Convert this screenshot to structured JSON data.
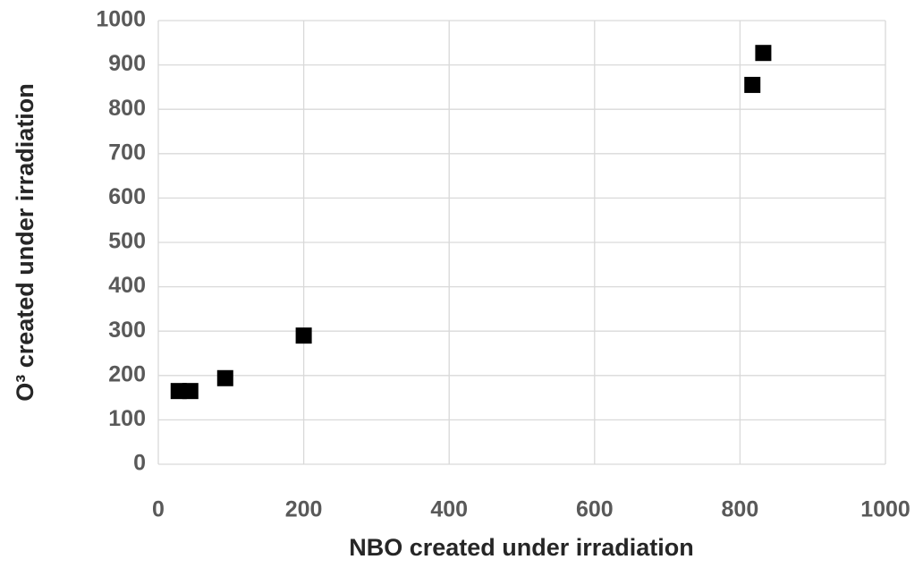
{
  "chart_data": {
    "type": "scatter",
    "xlabel": "NBO created under irradiation",
    "ylabel": "O³ created under irradiation",
    "x": [
      28,
      44,
      92,
      200,
      817,
      832
    ],
    "values": [
      165,
      165,
      194,
      290,
      855,
      927
    ],
    "color": "#000000",
    "xlim": [
      0,
      1000
    ],
    "xticks": [
      0,
      200,
      400,
      600,
      800,
      1000
    ],
    "ylim": [
      0,
      1000
    ],
    "yticks": [
      0,
      100,
      200,
      300,
      400,
      500,
      600,
      700,
      800,
      900,
      1000
    ],
    "grid": true
  }
}
